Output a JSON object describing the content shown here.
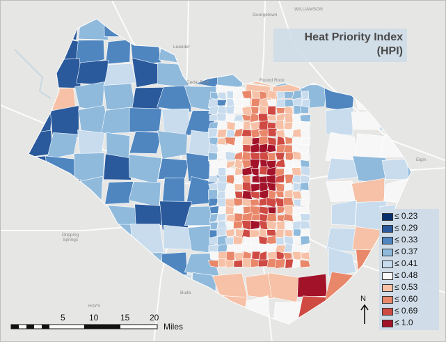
{
  "title": {
    "line1": "Heat Priority Index",
    "line2": "(HPI)"
  },
  "legend": [
    {
      "label": "≤ 0.23",
      "color": "#08306b"
    },
    {
      "label": "≤ 0.29",
      "color": "#2a5a9c"
    },
    {
      "label": "≤ 0.33",
      "color": "#4f86c0"
    },
    {
      "label": "≤ 0.37",
      "color": "#8fbadc"
    },
    {
      "label": "≤ 0.41",
      "color": "#c8dcee"
    },
    {
      "label": "≤ 0.48",
      "color": "#f7f7f7"
    },
    {
      "label": "≤ 0.53",
      "color": "#f6c1a6"
    },
    {
      "label": "≤ 0.60",
      "color": "#e9876a"
    },
    {
      "label": "≤ 0.69",
      "color": "#cf4a43"
    },
    {
      "label": "≤ 1.0",
      "color": "#a2132a"
    }
  ],
  "places": {
    "georgetown": "Georgetown",
    "williamson": "WILLIAMSON",
    "leander": "Leander",
    "cedar_park": "Cedar Park",
    "round_rock": "Round Rock",
    "elgin": "Elgin",
    "dripping_springs": "Dripping\nSprings",
    "buda": "Buda",
    "hays": "HAYS"
  },
  "north": {
    "label": "N"
  },
  "scale": {
    "ticks": [
      "5",
      "10",
      "15",
      "20"
    ],
    "units": "Miles"
  },
  "colors": {
    "basemap": "#e6e6e4",
    "roads": "#ffffff",
    "tract_border": "#ffffff"
  }
}
